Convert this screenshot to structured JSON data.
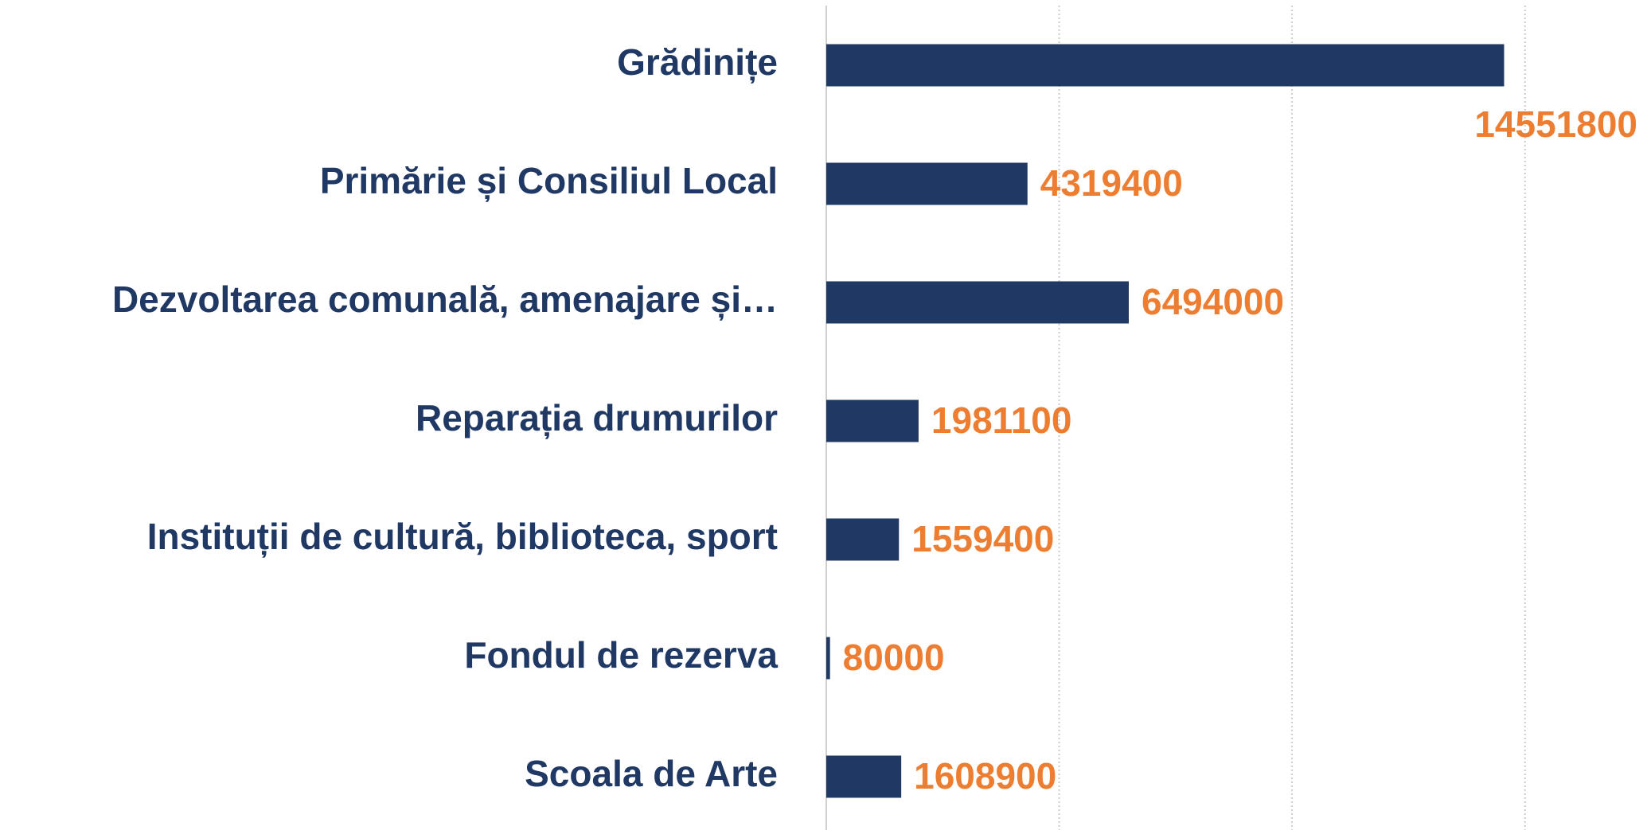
{
  "chart_data": {
    "type": "hbar",
    "categories": [
      "Grădinițe",
      "Primărie și Consiliul Local",
      "Dezvoltarea comunală, amenajare și…",
      "Reparația drumurilor",
      "Instituții de cultură, biblioteca, sport",
      "Fondul de rezerva",
      "Scoala de Arte"
    ],
    "values": [
      14551800,
      4319400,
      6494000,
      1981100,
      1559400,
      80000,
      1608900
    ],
    "color": "#203864",
    "label_color": "#ED7D31",
    "xlim": [
      0,
      17500000
    ],
    "xticks": [
      0,
      5000000,
      10000000,
      15000000
    ],
    "grid": true
  }
}
